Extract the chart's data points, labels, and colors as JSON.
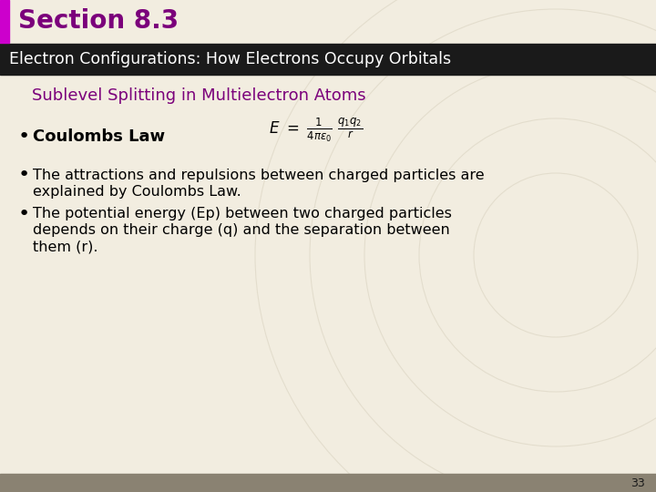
{
  "title": "Section 8.3",
  "title_color": "#7b007b",
  "subtitle": "Electron Configurations: How Electrons Occupy Orbitals",
  "subtitle_bg": "#1a1a1a",
  "subtitle_color": "#ffffff",
  "section_title": "Sublevel Splitting in Multielectron Atoms",
  "section_title_color": "#7b007b",
  "bg_color": "#f2ede0",
  "left_bar_color": "#cc00cc",
  "bullet1_bold": "Coulombs Law",
  "bullet2_line1": "The attractions and repulsions between charged particles are",
  "bullet2_line2": "explained by Coulombs Law.",
  "bullet3_line1": "The potential energy (Ep) between two charged particles",
  "bullet3_line2": "depends on their charge (q) and the separation between",
  "bullet3_line3": "them (r).",
  "page_number": "33",
  "footer_color": "#8a8272"
}
